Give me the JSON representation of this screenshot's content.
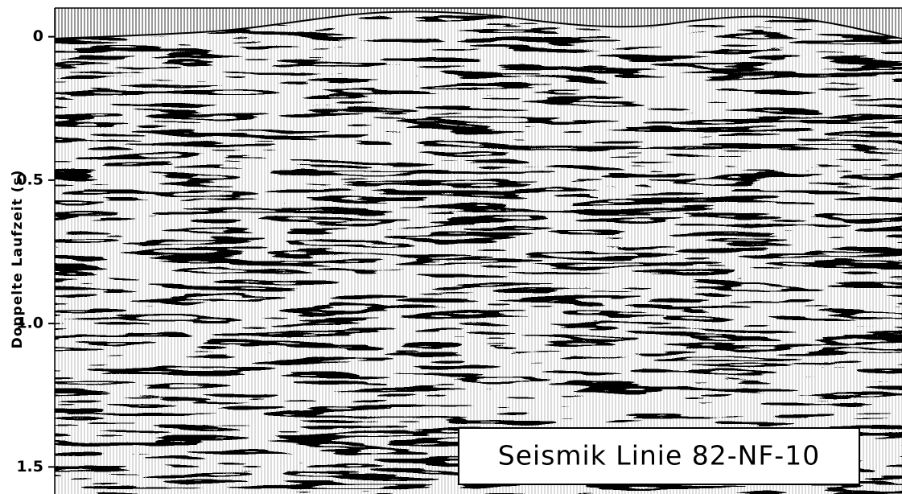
{
  "chart_data": {
    "type": "image",
    "ylabel": "Doppelte Laufzeit (s)",
    "annotation": "Seismik Linie 82-NF-10",
    "ylim": [
      -0.1,
      1.6
    ],
    "yticks": [
      0,
      0.5,
      {
        "value": 1.0,
        "label": "1.0"
      },
      1.5
    ]
  }
}
